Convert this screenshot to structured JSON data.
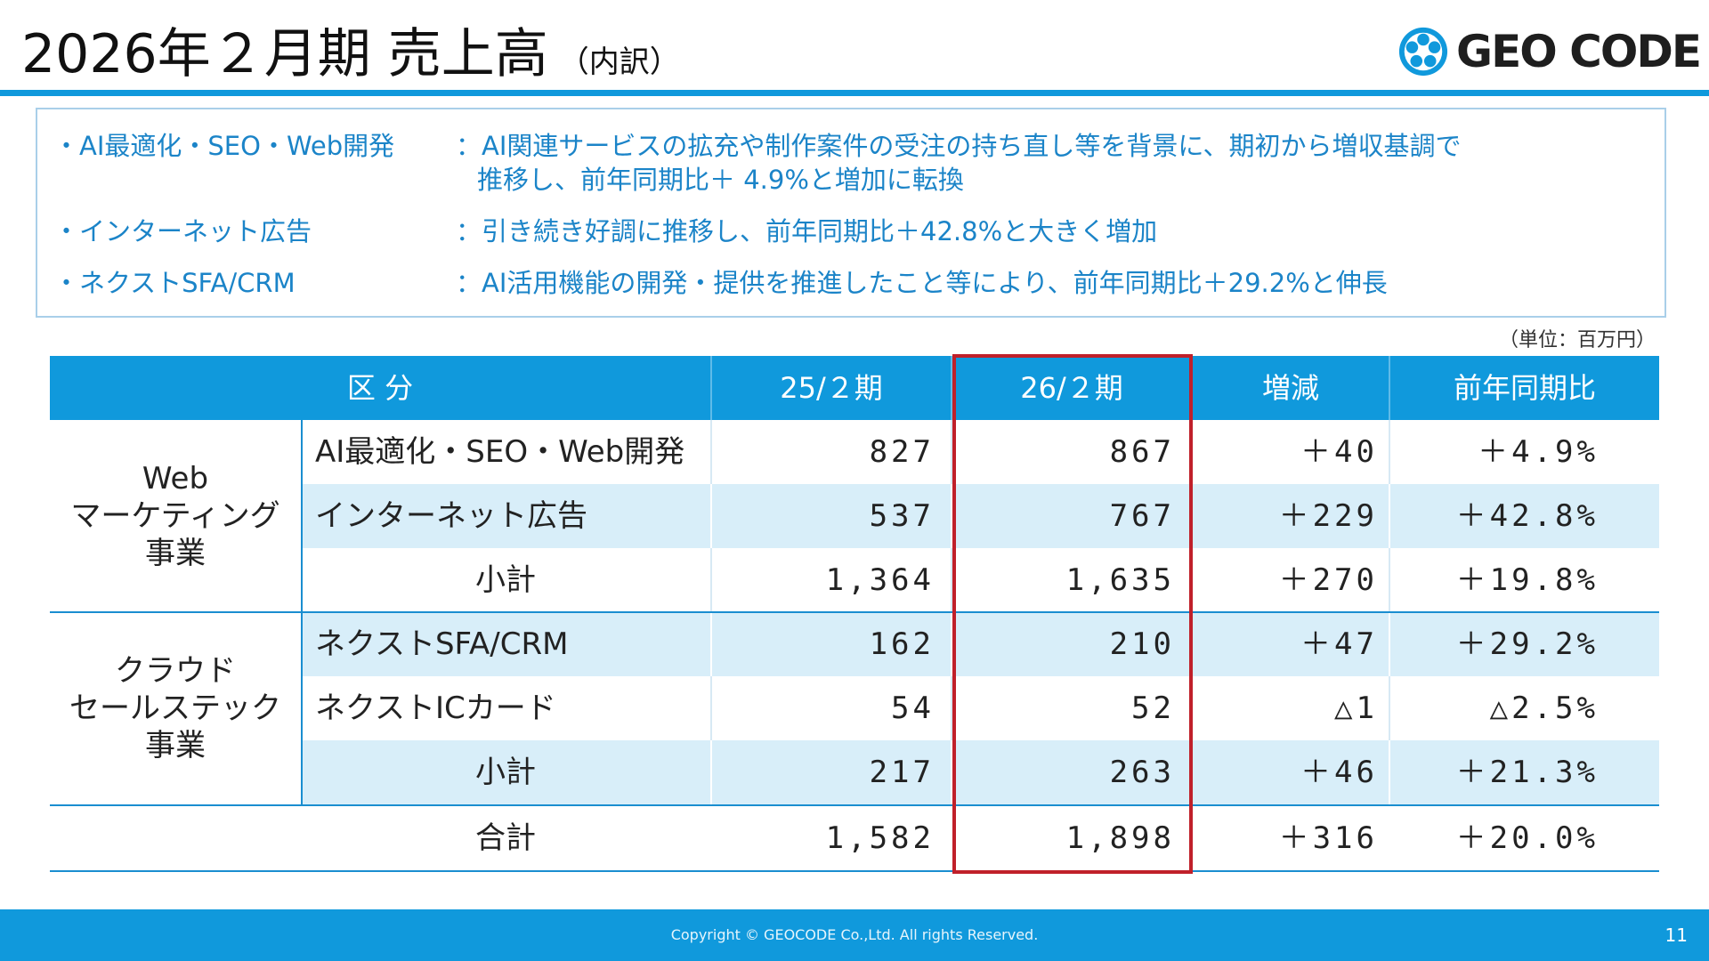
{
  "header": {
    "title": "2026年２月期 売上高",
    "subtitle": "（内訳）",
    "logo_text": "GEO CODE"
  },
  "summary": [
    {
      "category": "・AI最適化・SEO・Web開発",
      "description": "：AI関連サービスの拡充や制作案件の受注の持ち直し等を背景に、期初から増収基調で",
      "description_line2": "推移し、前年同期比＋ 4.9%と増加に転換"
    },
    {
      "category": "・インターネット広告",
      "description": "：引き続き好調に推移し、前年同期比＋42.8%と大きく増加"
    },
    {
      "category": "・ネクストSFA/CRM",
      "description": "：AI活用機能の開発・提供を推進したこと等により、前年同期比＋29.2%と伸長"
    }
  ],
  "unit_note": "（単位：百万円）",
  "table": {
    "headers": [
      "区 分",
      "25/２期",
      "26/２期",
      "増減",
      "前年同期比"
    ],
    "groups": [
      {
        "name_lines": [
          "Web",
          "マーケティング",
          "事業"
        ]
      },
      {
        "name_lines": [
          "クラウド",
          "セールステック",
          "事業"
        ]
      }
    ],
    "rows": [
      {
        "label": "AI最適化・SEO・Web開発",
        "fy25": "827",
        "fy26": "867",
        "change": "＋40",
        "yoy": "＋4.9%"
      },
      {
        "label": "インターネット広告",
        "fy25": "537",
        "fy26": "767",
        "change": "＋229",
        "yoy": "＋42.8%"
      },
      {
        "label": "小計",
        "fy25": "1,364",
        "fy26": "1,635",
        "change": "＋270",
        "yoy": "＋19.8%"
      },
      {
        "label": "ネクストSFA/CRM",
        "fy25": "162",
        "fy26": "210",
        "change": "＋47",
        "yoy": "＋29.2%"
      },
      {
        "label": "ネクストICカード",
        "fy25": "54",
        "fy26": "52",
        "change": "△1",
        "yoy": "△2.5%"
      },
      {
        "label": "小計",
        "fy25": "217",
        "fy26": "263",
        "change": "＋46",
        "yoy": "＋21.3%"
      }
    ],
    "total": {
      "label": "合計",
      "fy25": "1,582",
      "fy26": "1,898",
      "change": "＋316",
      "yoy": "＋20.0%"
    }
  },
  "footer": {
    "copyright": "Copyright © GEOCODE Co.,Ltd. All rights Reserved.",
    "page_number": "11"
  },
  "colors": {
    "accent": "#1099dc",
    "row_shade": "#d8eef9",
    "summary_text": "#1b84c8",
    "highlight": "#c0202a"
  }
}
